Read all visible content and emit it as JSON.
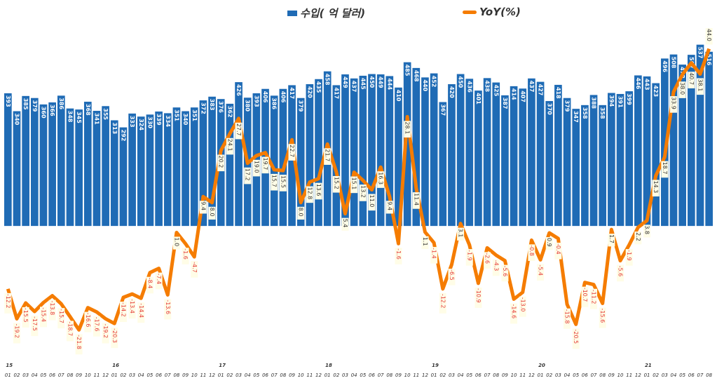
{
  "legend": {
    "bar_label": "수입( 억 달러)",
    "line_label": "YoY(%)"
  },
  "colors": {
    "bar": "#1f6bb5",
    "line": "#f57c00",
    "negative_label": "#e53935",
    "positive_label": "#333333",
    "label_bg": "#fffde7"
  },
  "chart_data": {
    "type": "bar+line",
    "title": "",
    "bar_ylim": [
      -380,
      607
    ],
    "line_ylim": [
      -27.5,
      50.5
    ],
    "years": [
      "15",
      "16",
      "17",
      "18",
      "19",
      "20",
      "21"
    ],
    "months": [
      "01",
      "02",
      "03",
      "04",
      "05",
      "06",
      "07",
      "08",
      "09",
      "10",
      "11",
      "12"
    ],
    "series": [
      {
        "name": "수입( 억 달러)",
        "type": "bar",
        "values": [
          393,
          340,
          385,
          379,
          360,
          366,
          386,
          348,
          345,
          368,
          341,
          355,
          313,
          292,
          333,
          324,
          330,
          339,
          334,
          351,
          340,
          351,
          372,
          383,
          376,
          362,
          426,
          380,
          393,
          406,
          386,
          406,
          417,
          379,
          420,
          435,
          458,
          417,
          449,
          437,
          445,
          450,
          449,
          444,
          410,
          485,
          468,
          440,
          452,
          367,
          420,
          450,
          436,
          401,
          438,
          425,
          387,
          414,
          407,
          437,
          427,
          370,
          418,
          379,
          347,
          358,
          388,
          358,
          394,
          391,
          399,
          446,
          443,
          423,
          496,
          508,
          478,
          507,
          537,
          516
        ]
      },
      {
        "name": "YoY(%)",
        "type": "line",
        "values": [
          -12.2,
          -19.2,
          -15.5,
          -17.5,
          -15.4,
          -13.8,
          -15.7,
          -18.7,
          -21.8,
          -16.6,
          -17.6,
          -19.2,
          -20.3,
          -14.2,
          -13.4,
          -14.4,
          -8.4,
          -7.4,
          -13.6,
          1.0,
          -1.6,
          -4.7,
          9.4,
          8.0,
          20.2,
          24.1,
          27.7,
          17.2,
          19.0,
          19.7,
          15.7,
          15.5,
          22.7,
          8.0,
          12.8,
          13.6,
          21.7,
          15.2,
          5.4,
          15.1,
          13.2,
          11.0,
          16.3,
          9.4,
          -1.6,
          28.1,
          11.4,
          1.1,
          -1.4,
          -12.2,
          -6.5,
          3.1,
          -1.9,
          -10.9,
          -2.6,
          -4.3,
          -5.6,
          -14.6,
          -13.0,
          -0.8,
          -5.4,
          0.9,
          -0.4,
          -15.8,
          -20.5,
          -10.7,
          -11.2,
          -15.6,
          1.7,
          -5.6,
          -1.9,
          2.2,
          3.8,
          14.3,
          18.7,
          33.9,
          38.0,
          40.7,
          38.1,
          44.0
        ]
      }
    ]
  }
}
